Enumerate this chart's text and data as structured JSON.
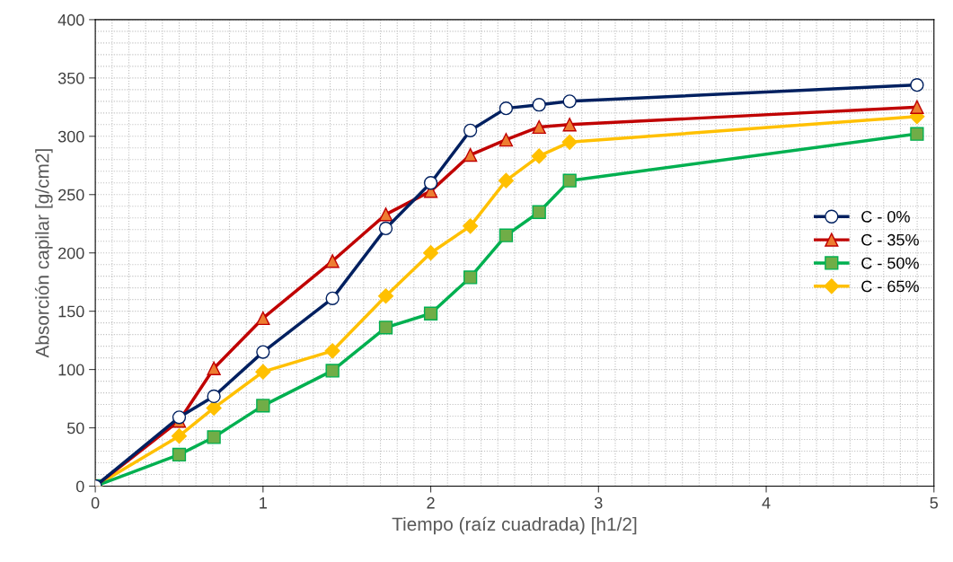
{
  "chart_data": {
    "type": "line",
    "xlabel": "Tiempo (raíz cuadrada) [h1/2]",
    "ylabel": "Absorción capilar [g/cm2]",
    "x": [
      0,
      0.5,
      0.707,
      1,
      1.414,
      1.732,
      2,
      2.236,
      2.449,
      2.646,
      2.828,
      4.899
    ],
    "series": [
      {
        "name": "C - 0%",
        "color": "#002060",
        "marker": "circle",
        "values": [
          0,
          59,
          77,
          115,
          161,
          221,
          260,
          305,
          324,
          327,
          330,
          344
        ]
      },
      {
        "name": "C - 35%",
        "color": "#c00000",
        "marker": "triangle",
        "values": [
          0,
          56,
          101,
          144,
          193,
          233,
          253,
          284,
          297,
          308,
          310,
          325
        ]
      },
      {
        "name": "C - 50%",
        "color": "#00b050",
        "marker": "square",
        "values": [
          0,
          27,
          42,
          69,
          99,
          136,
          148,
          179,
          215,
          235,
          262,
          302
        ]
      },
      {
        "name": "C - 65%",
        "color": "#ffc000",
        "marker": "diamond",
        "values": [
          0,
          43,
          67,
          98,
          116,
          163,
          200,
          223,
          262,
          283,
          295,
          317
        ]
      }
    ],
    "xlim": [
      0,
      5
    ],
    "xticks": [
      0,
      1,
      2,
      3,
      4,
      5
    ],
    "ylim": [
      0,
      400
    ],
    "yticks": [
      0,
      50,
      100,
      150,
      200,
      250,
      300,
      350,
      400
    ],
    "grid": true,
    "legend": "right",
    "line_style": "solid"
  }
}
